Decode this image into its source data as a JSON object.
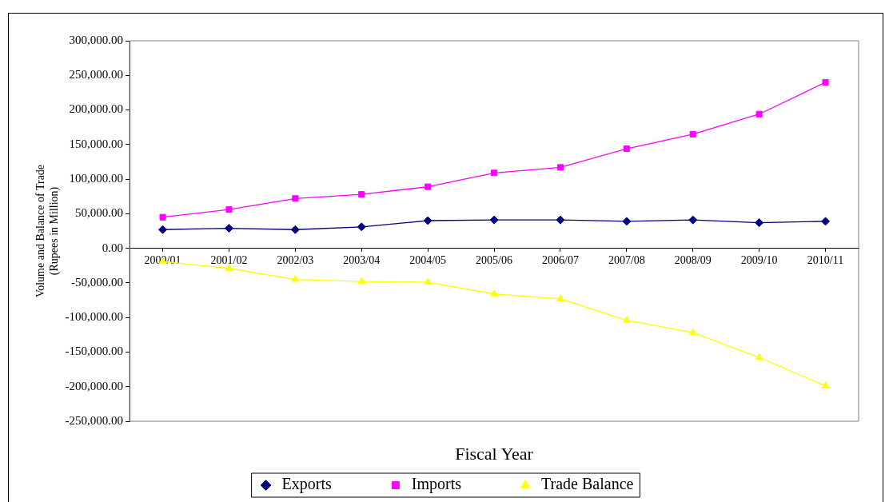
{
  "chart_data": {
    "type": "line",
    "xlabel": "Fiscal Year",
    "ylabel": "Volume and Balance of Trade\n(Rupees in Million)",
    "categories": [
      "2000/01",
      "2001/02",
      "2002/03",
      "2003/04",
      "2004/05",
      "2005/06",
      "2006/07",
      "2007/08",
      "2008/09",
      "2009/10",
      "2010/11"
    ],
    "series": [
      {
        "name": "Exports",
        "color": "#000080",
        "marker": "diamond",
        "values": [
          27000,
          29000,
          27000,
          31000,
          40000,
          41000,
          41000,
          39000,
          41000,
          37000,
          39000
        ]
      },
      {
        "name": "Imports",
        "color": "#ff00ff",
        "marker": "square",
        "values": [
          45000,
          56000,
          72000,
          78000,
          89000,
          109000,
          117000,
          144000,
          165000,
          194000,
          240000
        ]
      },
      {
        "name": "Trade Balance",
        "color": "#ffff00",
        "marker": "triangle",
        "values": [
          -19000,
          -29000,
          -45000,
          -48000,
          -49000,
          -66000,
          -73000,
          -104000,
          -122000,
          -158000,
          -199000
        ]
      }
    ],
    "ylim": [
      -250000,
      300000
    ],
    "yticks": [
      {
        "value": 300000,
        "label": "300,000.00"
      },
      {
        "value": 250000,
        "label": "250,000.00"
      },
      {
        "value": 200000,
        "label": "200,000.00"
      },
      {
        "value": 150000,
        "label": "150,000.00"
      },
      {
        "value": 100000,
        "label": "100,000.00"
      },
      {
        "value": 50000,
        "label": "50,000.00"
      },
      {
        "value": 0,
        "label": "0.00"
      },
      {
        "value": -50000,
        "label": "-50,000.00"
      },
      {
        "value": -100000,
        "label": "-100,000.00"
      },
      {
        "value": -150000,
        "label": "-150,000.00"
      },
      {
        "value": -200000,
        "label": "-200,000.00"
      },
      {
        "value": -250000,
        "label": "-250,000.00"
      }
    ],
    "grid": false,
    "legend": "bottom",
    "line_style": "solid"
  }
}
